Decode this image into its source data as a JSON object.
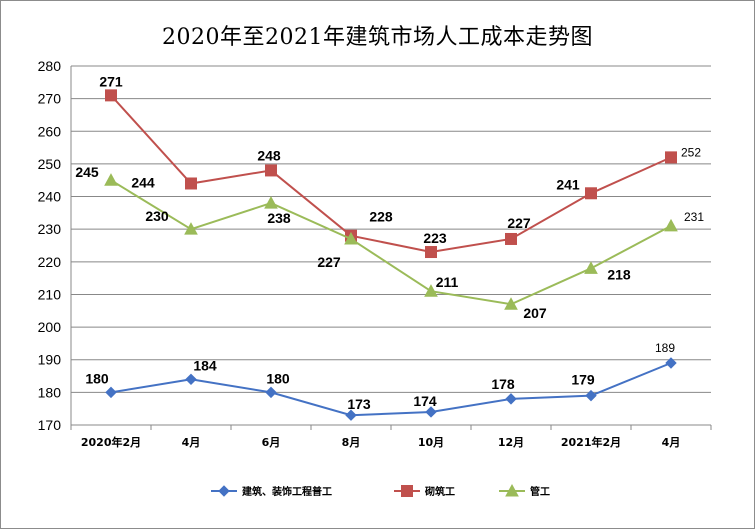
{
  "chart_data": {
    "type": "line",
    "title": "2020年至2021年建筑市场人工成本走势图",
    "categories": [
      "2020年2月",
      "4月",
      "6月",
      "8月",
      "10月",
      "12月",
      "2021年2月",
      "4月"
    ],
    "ylim": [
      170,
      280
    ],
    "yticks": [
      170,
      180,
      190,
      200,
      210,
      220,
      230,
      240,
      250,
      260,
      270,
      280
    ],
    "grid": true,
    "legend_position": "bottom",
    "series": [
      {
        "name": "建筑、装饰工程普工",
        "color": "#4472C4",
        "marker": "diamond",
        "values": [
          180,
          184,
          180,
          173,
          174,
          178,
          179,
          189
        ]
      },
      {
        "name": "砌筑工",
        "color": "#C0504D",
        "marker": "square",
        "values": [
          271,
          244,
          248,
          228,
          223,
          227,
          241,
          252
        ]
      },
      {
        "name": "管工",
        "color": "#9BBB59",
        "marker": "triangle",
        "values": [
          245,
          230,
          238,
          227,
          211,
          207,
          218,
          231
        ]
      }
    ]
  }
}
